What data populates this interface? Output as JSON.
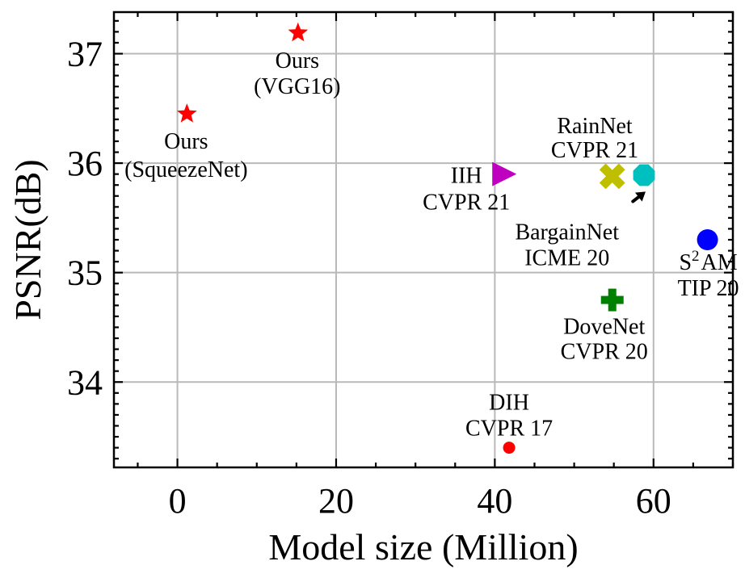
{
  "chart_data": {
    "type": "scatter",
    "xlabel": "Model size (Million)",
    "ylabel": "PSNR(dB)",
    "xlim": [
      -8,
      70
    ],
    "ylim": [
      33.22,
      37.38
    ],
    "xticks": [
      0,
      20,
      40,
      60
    ],
    "yticks": [
      34,
      35,
      36,
      37
    ],
    "grid": true,
    "points": [
      {
        "id": "ours-squeezenet",
        "x": 1.2,
        "y": 36.45,
        "marker": "star",
        "color": "#ff0000",
        "label": [
          "Ours",
          "(SqueezeNet)"
        ]
      },
      {
        "id": "ours-vgg16",
        "x": 15.2,
        "y": 37.19,
        "marker": "star",
        "color": "#ff0000",
        "label": [
          "Ours",
          "(VGG16)"
        ]
      },
      {
        "id": "iih",
        "x": 41.0,
        "y": 35.9,
        "marker": "triangle-right",
        "color": "#bf00bf",
        "label": [
          "IIH",
          "CVPR 21"
        ]
      },
      {
        "id": "bargainnet",
        "x": 54.8,
        "y": 35.88,
        "marker": "x-filled",
        "color": "#bfbf00",
        "label": [
          "BargainNet",
          "ICME 20"
        ]
      },
      {
        "id": "rainnet",
        "x": 58.8,
        "y": 35.89,
        "marker": "octagon",
        "color": "#00bfbf",
        "label": [
          "RainNet",
          "CVPR 21"
        ]
      },
      {
        "id": "s2am",
        "x": 66.8,
        "y": 35.3,
        "marker": "circle",
        "color": "#0000ff",
        "label": [
          "S2AM",
          "TIP 20"
        ]
      },
      {
        "id": "dovenet",
        "x": 54.8,
        "y": 34.75,
        "marker": "plus-filled",
        "color": "#008000",
        "label": [
          "DoveNet",
          "CVPR 20"
        ]
      },
      {
        "id": "dih",
        "x": 41.8,
        "y": 33.4,
        "marker": "circle-small",
        "color": "#ff0000",
        "label": [
          "DIH",
          "CVPR 17"
        ]
      }
    ],
    "annotations": [
      {
        "type": "arrow",
        "from": [
          57.4,
          35.65
        ],
        "to": [
          59.0,
          35.74
        ]
      }
    ]
  }
}
